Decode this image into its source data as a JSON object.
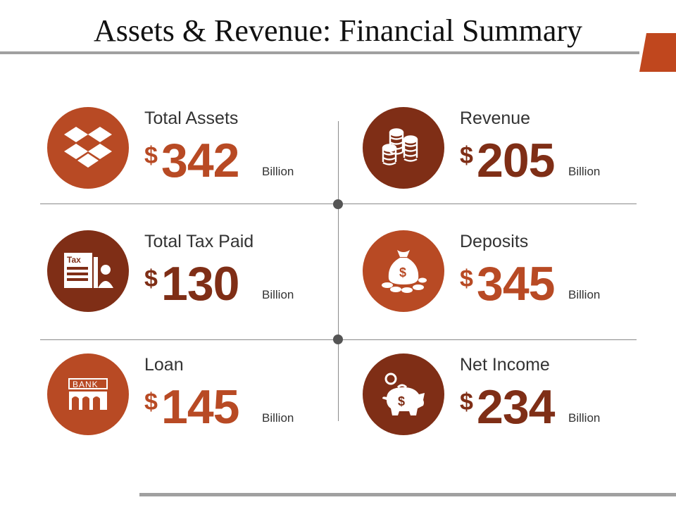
{
  "title": "Assets & Revenue: Financial Summary",
  "colors": {
    "orange": "#b84a24",
    "brown": "#7f2e16",
    "line": "#a0a0a0"
  },
  "items": [
    {
      "label": "Total Assets",
      "currency": "$",
      "value": "342",
      "unit": "Billion",
      "icon": "dropbox-icon",
      "color": "#b84a24"
    },
    {
      "label": "Revenue",
      "currency": "$",
      "value": "205",
      "unit": "Billion",
      "icon": "coin-stacks-icon",
      "color": "#7f2e16"
    },
    {
      "label": "Total Tax Paid",
      "currency": "$",
      "value": "130",
      "unit": "Billion",
      "icon": "tax-document-icon",
      "color": "#7f2e16",
      "icon_text": "Tax"
    },
    {
      "label": "Deposits",
      "currency": "$",
      "value": "345",
      "unit": "Billion",
      "icon": "money-bag-icon",
      "color": "#b84a24"
    },
    {
      "label": "Loan",
      "currency": "$",
      "value": "145",
      "unit": "Billion",
      "icon": "bank-icon",
      "color": "#b84a24",
      "icon_text": "BANK"
    },
    {
      "label": "Net Income",
      "currency": "$",
      "value": "234",
      "unit": "Billion",
      "icon": "piggy-bank-icon",
      "color": "#7f2e16"
    }
  ]
}
